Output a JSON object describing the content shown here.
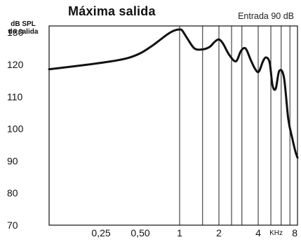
{
  "chart_data": {
    "type": "line",
    "title": "Máxima salida",
    "subtitle": "Entrada 90 dB",
    "ylabel": "dB SPL de salida",
    "ylabel_lines": [
      "dB SPL",
      "de salida"
    ],
    "xunit_label": "KHz",
    "ylim": [
      70,
      132
    ],
    "y_ticks": [
      130,
      120,
      110,
      100,
      90,
      80,
      70
    ],
    "x_scale": "log",
    "xlim": [
      0.1,
      8
    ],
    "x_tick_values": [
      0.25,
      0.5,
      1,
      2,
      4,
      8
    ],
    "x_tick_labels": [
      "0,25",
      "0,50",
      "1",
      "2",
      "4",
      "8"
    ],
    "x_grid_values": [
      1,
      1.5,
      2,
      2.5,
      3,
      4,
      5,
      6,
      7,
      8
    ],
    "grid": "vertical above 1 kHz",
    "series": [
      {
        "x": [
          0.1,
          0.2,
          0.3,
          0.4,
          0.5,
          0.6,
          0.7,
          0.8,
          0.9,
          1.0,
          1.05,
          1.15,
          1.3,
          1.5,
          1.7,
          1.85,
          2.0,
          2.15,
          2.4,
          2.7,
          2.95,
          3.2,
          3.5,
          3.8,
          4.05,
          4.35,
          4.6,
          4.9,
          5.15,
          5.45,
          5.8,
          6.3,
          6.8,
          7.3,
          7.7,
          8.0
        ],
        "y": [
          118.5,
          120,
          121,
          122,
          123.5,
          125.5,
          127.5,
          129.3,
          130.5,
          130.9,
          130.5,
          128,
          125,
          124.7,
          125.5,
          127,
          127.8,
          126.5,
          123,
          121,
          124.2,
          125,
          121.5,
          118.5,
          117.8,
          121,
          122.2,
          120.5,
          113.5,
          112.5,
          118,
          116,
          103,
          97,
          93,
          91
        ]
      }
    ]
  }
}
